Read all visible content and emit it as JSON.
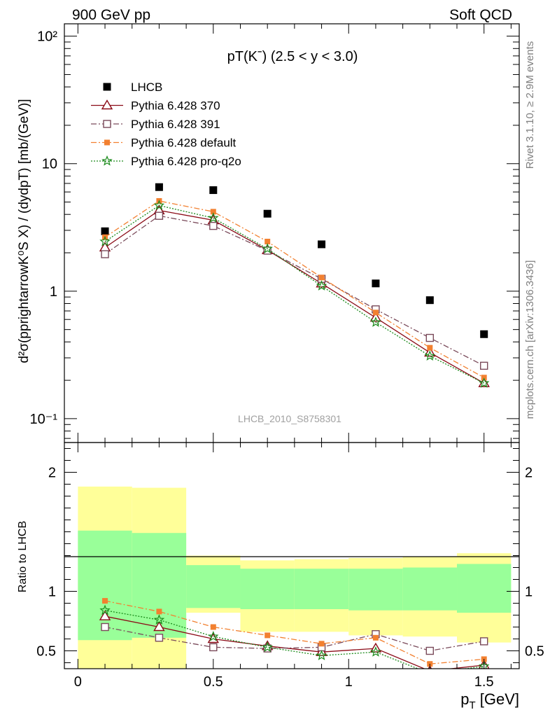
{
  "header": {
    "left": "900 GeV pp",
    "right": "Soft QCD"
  },
  "side_labels": {
    "rivet": "Rivet 3.1.10, ≥ 2.9M events",
    "source": "mcplots.cern.ch [arXiv:1306.3436]"
  },
  "chart_data": [
    {
      "type": "scatter",
      "title": "pT(Kˉ) (2.5 < y < 3.0)",
      "ylabel": "d²σ(pprightarrowK⁰S X) / (dydpT) [mb/(GeV)]",
      "analysis_label": "LHCB_2010_S8758301",
      "yscale": "log",
      "ylim": [
        0.065,
        125
      ],
      "xlim": [
        -0.05,
        1.63
      ],
      "y_ticks": [
        "10⁻¹",
        "1",
        "10",
        "10²"
      ],
      "x": [
        0.1,
        0.3,
        0.5,
        0.7,
        0.9,
        1.1,
        1.3,
        1.5
      ],
      "series": [
        {
          "name": "LHCB",
          "color": "#000000",
          "marker": "filled-square",
          "line": "none",
          "values": [
            2.95,
            6.55,
            6.2,
            4.05,
            2.33,
            1.15,
            0.85,
            0.46
          ]
        },
        {
          "name": "Pythia 6.428 370",
          "color": "#8b0a16",
          "marker": "open-triangle",
          "line": "solid",
          "values": [
            2.2,
            4.3,
            3.6,
            2.1,
            1.15,
            0.62,
            0.33,
            0.19
          ]
        },
        {
          "name": "Pythia 6.428 391",
          "color": "#7a4a5a",
          "marker": "open-square",
          "line": "dash-dot",
          "values": [
            1.95,
            3.9,
            3.25,
            2.08,
            1.25,
            0.72,
            0.43,
            0.26
          ]
        },
        {
          "name": "Pythia 6.428 default",
          "color": "#f28030",
          "marker": "filled-square",
          "line": "dash-dot",
          "values": [
            2.65,
            5.1,
            4.2,
            2.45,
            1.28,
            0.68,
            0.36,
            0.21
          ]
        },
        {
          "name": "Pythia 6.428 pro-q2o",
          "color": "#1a8a1a",
          "marker": "star",
          "line": "dotted",
          "values": [
            2.45,
            4.7,
            3.75,
            2.15,
            1.1,
            0.57,
            0.31,
            0.19
          ]
        }
      ]
    },
    {
      "type": "line",
      "ylabel": "Ratio to LHCB",
      "xlabel": "p_T [GeV]",
      "ylim": [
        0.35,
        2.25
      ],
      "xlim": [
        -0.05,
        1.63
      ],
      "y_ticks": [
        "0.5",
        "1",
        "2"
      ],
      "x_ticks": [
        "0",
        "0.5",
        "1",
        "1.5"
      ],
      "bands": {
        "edges": [
          0,
          0.2,
          0.4,
          0.6,
          0.8,
          1.0,
          1.2,
          1.4,
          1.6
        ],
        "yellow_lo": [
          0.35,
          0.35,
          0.82,
          0.66,
          0.66,
          0.63,
          0.62,
          0.57
        ],
        "yellow_hi": [
          1.88,
          1.87,
          1.3,
          1.26,
          1.27,
          1.28,
          1.29,
          1.32
        ],
        "green_lo": [
          0.59,
          0.61,
          0.86,
          0.85,
          0.85,
          0.84,
          0.84,
          0.82
        ],
        "green_hi": [
          1.51,
          1.49,
          1.22,
          1.19,
          1.19,
          1.19,
          1.2,
          1.23
        ]
      },
      "series": [
        {
          "name": "Pythia 6.428 370",
          "values": [
            0.79,
            0.7,
            0.6,
            0.54,
            0.49,
            0.52,
            0.33,
            0.38
          ]
        },
        {
          "name": "Pythia 6.428 391",
          "values": [
            0.7,
            0.61,
            0.53,
            0.52,
            0.53,
            0.64,
            0.5,
            0.58
          ]
        },
        {
          "name": "Pythia 6.428 default",
          "values": [
            0.92,
            0.83,
            0.7,
            0.63,
            0.56,
            0.61,
            0.39,
            0.43
          ]
        },
        {
          "name": "Pythia 6.428 pro-q2o",
          "values": [
            0.84,
            0.76,
            0.62,
            0.53,
            0.46,
            0.49,
            0.31,
            0.37
          ]
        }
      ]
    }
  ]
}
